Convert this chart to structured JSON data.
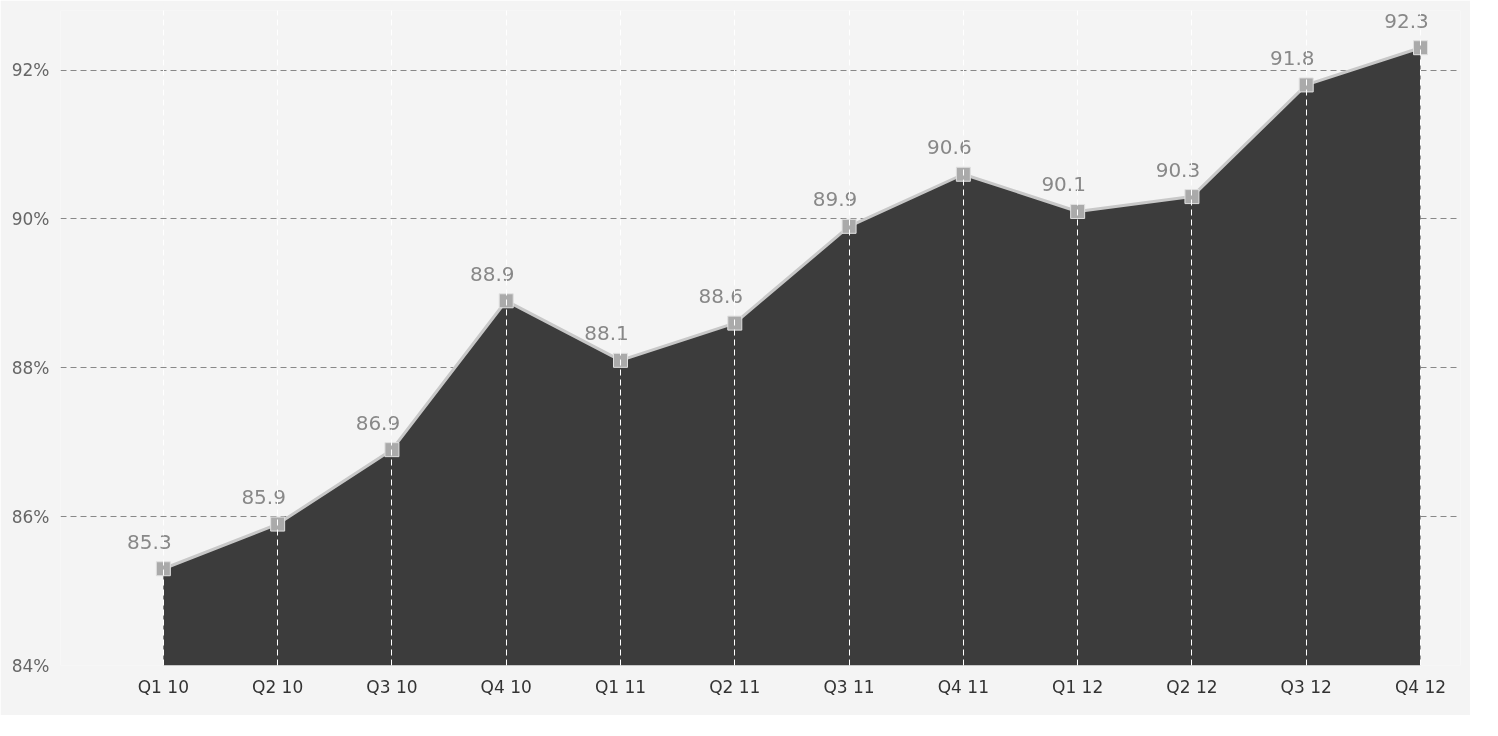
{
  "chart_data": {
    "type": "area",
    "categories": [
      "Q1 10",
      "Q2 10",
      "Q3 10",
      "Q4 10",
      "Q1 11",
      "Q2 11",
      "Q3 11",
      "Q4 11",
      "Q1 12",
      "Q2 12",
      "Q3 12",
      "Q4 12"
    ],
    "series": [
      {
        "color": "#3c3c3c",
        "values": [
          85.3,
          85.9,
          86.9,
          88.9,
          88.1,
          88.6,
          89.9,
          90.6,
          90.1,
          90.3,
          91.8,
          92.3
        ]
      }
    ],
    "ylim": [
      84,
      92.8
    ],
    "yticks": [
      {
        "value": 84,
        "label": "84%"
      },
      {
        "value": 86,
        "label": "86%"
      },
      {
        "value": 88,
        "label": "88%"
      },
      {
        "value": 90,
        "label": "90%"
      },
      {
        "value": 92,
        "label": "92%"
      }
    ],
    "grid": true,
    "marker": "square",
    "data_labels": true
  }
}
